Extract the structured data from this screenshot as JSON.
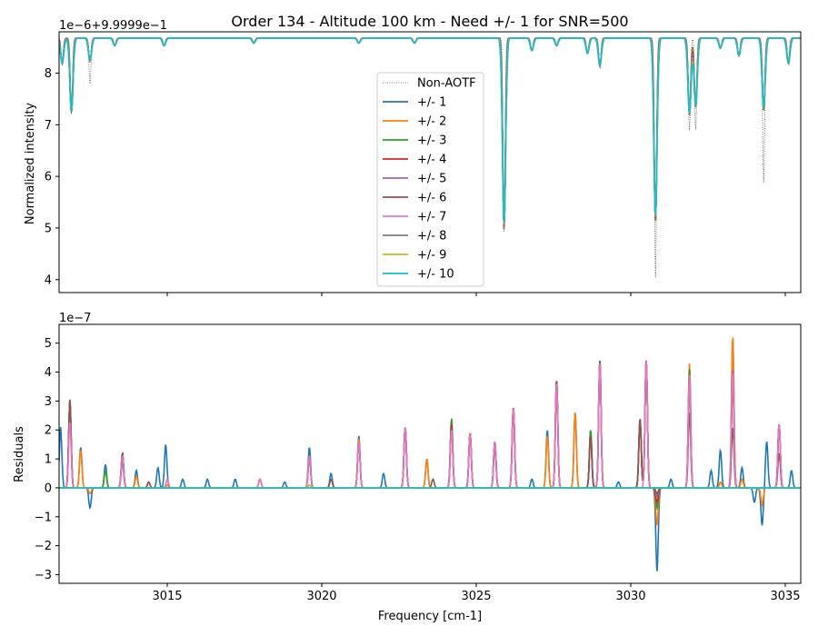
{
  "chart_data": [
    {
      "type": "line",
      "panel": "top",
      "title": "Order 134 - Altitude 100 km - Need +/- 1 for SNR=500",
      "offset_label": "1e−6+9.9999e−1",
      "ylabel": "Normalized intensity",
      "xlim": [
        3011.5,
        3035.5
      ],
      "ylim": [
        3.75,
        8.8
      ],
      "yticks": [
        "4",
        "5",
        "6",
        "7",
        "8"
      ],
      "legend_position": "center",
      "baseline": 8.68,
      "reference_series": {
        "name": "Non-AOTF",
        "color": "#555555",
        "style": "dotted"
      },
      "absorption_lines": [
        {
          "x": 3011.6,
          "depth": 0.5,
          "ref_depth": 0.5
        },
        {
          "x": 3011.9,
          "depth": 1.45,
          "ref_depth": 1.5
        },
        {
          "x": 3012.5,
          "depth": 0.45,
          "ref_depth": 0.9
        },
        {
          "x": 3013.3,
          "depth": 0.15,
          "ref_depth": 0.15
        },
        {
          "x": 3014.9,
          "depth": 0.15,
          "ref_depth": 0.15
        },
        {
          "x": 3017.8,
          "depth": 0.1,
          "ref_depth": 0.1
        },
        {
          "x": 3021.2,
          "depth": 0.1,
          "ref_depth": 0.1
        },
        {
          "x": 3023.0,
          "depth": 0.1,
          "ref_depth": 0.1
        },
        {
          "x": 3025.9,
          "depth": 3.7,
          "ref_depth": 3.75
        },
        {
          "x": 3026.8,
          "depth": 0.25,
          "ref_depth": 0.25
        },
        {
          "x": 3027.6,
          "depth": 0.15,
          "ref_depth": 0.15
        },
        {
          "x": 3028.6,
          "depth": 0.3,
          "ref_depth": 0.3
        },
        {
          "x": 3029.0,
          "depth": 0.55,
          "ref_depth": 0.55
        },
        {
          "x": 3030.8,
          "depth": 3.55,
          "ref_depth": 4.65
        },
        {
          "x": 3031.9,
          "depth": 1.5,
          "ref_depth": 1.8
        },
        {
          "x": 3032.1,
          "depth": 1.35,
          "ref_depth": 1.8
        },
        {
          "x": 3032.9,
          "depth": 0.2,
          "ref_depth": 0.2
        },
        {
          "x": 3033.5,
          "depth": 0.35,
          "ref_depth": 0.35
        },
        {
          "x": 3034.3,
          "depth": 1.4,
          "ref_depth": 2.8
        },
        {
          "x": 3035.1,
          "depth": 0.5,
          "ref_depth": 0.5
        }
      ],
      "series": [
        {
          "name": "+/- 1",
          "color": "#1f77b4"
        },
        {
          "name": "+/- 2",
          "color": "#ff7f0e"
        },
        {
          "name": "+/- 3",
          "color": "#2ca02c"
        },
        {
          "name": "+/- 4",
          "color": "#d62728"
        },
        {
          "name": "+/- 5",
          "color": "#9467bd"
        },
        {
          "name": "+/- 6",
          "color": "#8c564b"
        },
        {
          "name": "+/- 7",
          "color": "#e377c2"
        },
        {
          "name": "+/- 8",
          "color": "#7f7f7f"
        },
        {
          "name": "+/- 9",
          "color": "#bcbd22"
        },
        {
          "name": "+/- 10",
          "color": "#17becf"
        }
      ]
    },
    {
      "type": "line",
      "panel": "bottom",
      "offset_label": "1e−7",
      "xlabel": "Frequency [cm-1]",
      "ylabel": "Residuals",
      "xlim": [
        3011.5,
        3035.5
      ],
      "ylim": [
        -3.3,
        5.65
      ],
      "xticks": [
        "3015",
        "3020",
        "3025",
        "3030",
        "3035"
      ],
      "yticks": [
        "−3",
        "−2",
        "−1",
        "0",
        "1",
        "2",
        "3",
        "4",
        "5"
      ],
      "series": [
        {
          "name": "+/- 1",
          "color": "#1f77b4",
          "peaks": [
            [
              3011.55,
              2.1
            ],
            [
              3011.85,
              3.0
            ],
            [
              3012.2,
              1.4
            ],
            [
              3012.5,
              -0.7
            ],
            [
              3013.0,
              0.8
            ],
            [
              3013.55,
              0.9
            ],
            [
              3014.0,
              0.6
            ],
            [
              3014.7,
              0.7
            ],
            [
              3014.95,
              1.5
            ],
            [
              3015.5,
              0.3
            ],
            [
              3016.3,
              0.3
            ],
            [
              3017.2,
              0.3
            ],
            [
              3018.0,
              0.3
            ],
            [
              3018.8,
              0.2
            ],
            [
              3019.6,
              1.4
            ],
            [
              3020.3,
              0.5
            ],
            [
              3021.2,
              1.8
            ],
            [
              3022.0,
              0.5
            ],
            [
              3022.7,
              2.1
            ],
            [
              3023.4,
              1.0
            ],
            [
              3024.2,
              2.3
            ],
            [
              3024.8,
              1.9
            ],
            [
              3025.6,
              1.6
            ],
            [
              3026.2,
              2.8
            ],
            [
              3026.8,
              0.3
            ],
            [
              3027.3,
              2.0
            ],
            [
              3027.6,
              3.7
            ],
            [
              3028.2,
              2.6
            ],
            [
              3028.7,
              2.0
            ],
            [
              3029.0,
              4.4
            ],
            [
              3029.6,
              0.2
            ],
            [
              3030.3,
              2.4
            ],
            [
              3030.5,
              4.4
            ],
            [
              3030.85,
              -2.9
            ],
            [
              3031.3,
              0.3
            ],
            [
              3031.9,
              4.1
            ],
            [
              3032.6,
              0.6
            ],
            [
              3032.9,
              1.3
            ],
            [
              3033.3,
              5.2
            ],
            [
              3033.6,
              0.7
            ],
            [
              3034.0,
              -0.5
            ],
            [
              3034.25,
              -1.3
            ],
            [
              3034.4,
              1.6
            ],
            [
              3034.8,
              2.2
            ],
            [
              3035.2,
              0.6
            ]
          ]
        },
        {
          "name": "+/- 2",
          "color": "#ff7f0e",
          "peaks": [
            [
              3011.85,
              2.9
            ],
            [
              3012.2,
              1.3
            ],
            [
              3012.5,
              -0.2
            ],
            [
              3013.0,
              0.6
            ],
            [
              3013.55,
              1.2
            ],
            [
              3014.0,
              0.4
            ],
            [
              3015.0,
              0.1
            ],
            [
              3018.0,
              0.3
            ],
            [
              3019.6,
              1.1
            ],
            [
              3021.2,
              1.7
            ],
            [
              3022.7,
              2.1
            ],
            [
              3023.4,
              1.0
            ],
            [
              3024.2,
              2.2
            ],
            [
              3024.8,
              1.9
            ],
            [
              3025.6,
              1.5
            ],
            [
              3026.2,
              2.8
            ],
            [
              3027.3,
              1.8
            ],
            [
              3027.6,
              3.7
            ],
            [
              3028.2,
              2.6
            ],
            [
              3028.7,
              1.9
            ],
            [
              3029.0,
              4.4
            ],
            [
              3030.3,
              2.3
            ],
            [
              3030.5,
              4.4
            ],
            [
              3030.85,
              -1.3
            ],
            [
              3031.9,
              4.3
            ],
            [
              3032.9,
              0.2
            ],
            [
              3033.3,
              5.25
            ],
            [
              3033.6,
              0.3
            ],
            [
              3034.25,
              -0.6
            ],
            [
              3034.8,
              2.2
            ]
          ]
        },
        {
          "name": "+/- 3",
          "color": "#2ca02c",
          "peaks": [
            [
              3011.85,
              3.0
            ],
            [
              3013.0,
              0.6
            ],
            [
              3013.55,
              1.2
            ],
            [
              3019.6,
              1.1
            ],
            [
              3021.2,
              1.6
            ],
            [
              3022.7,
              2.1
            ],
            [
              3024.2,
              2.4
            ],
            [
              3024.8,
              1.9
            ],
            [
              3025.6,
              1.5
            ],
            [
              3026.2,
              2.8
            ],
            [
              3027.6,
              3.7
            ],
            [
              3028.7,
              2.0
            ],
            [
              3029.0,
              4.4
            ],
            [
              3030.3,
              2.3
            ],
            [
              3030.5,
              4.4
            ],
            [
              3030.85,
              -0.7
            ],
            [
              3031.9,
              4.1
            ],
            [
              3033.3,
              4.0
            ],
            [
              3034.8,
              2.2
            ]
          ]
        },
        {
          "name": "+/- 4",
          "color": "#d62728",
          "peaks": [
            [
              3011.85,
              3.0
            ],
            [
              3013.55,
              1.2
            ],
            [
              3014.4,
              0.2
            ],
            [
              3019.6,
              1.1
            ],
            [
              3021.2,
              1.6
            ],
            [
              3022.7,
              2.1
            ],
            [
              3024.2,
              2.2
            ],
            [
              3024.8,
              1.9
            ],
            [
              3025.6,
              1.5
            ],
            [
              3026.2,
              2.8
            ],
            [
              3027.6,
              3.7
            ],
            [
              3028.7,
              1.8
            ],
            [
              3029.0,
              4.4
            ],
            [
              3030.3,
              2.3
            ],
            [
              3030.5,
              4.4
            ],
            [
              3030.85,
              -0.5
            ],
            [
              3031.9,
              3.8
            ],
            [
              3033.3,
              3.6
            ],
            [
              3034.8,
              2.2
            ]
          ]
        },
        {
          "name": "+/- 5",
          "color": "#9467bd",
          "peaks": [
            [
              3011.85,
              3.0
            ],
            [
              3013.55,
              1.2
            ],
            [
              3019.6,
              1.1
            ],
            [
              3021.2,
              1.6
            ],
            [
              3022.7,
              2.1
            ],
            [
              3024.2,
              2.1
            ],
            [
              3024.8,
              1.9
            ],
            [
              3025.6,
              1.5
            ],
            [
              3026.2,
              2.8
            ],
            [
              3027.6,
              3.7
            ],
            [
              3028.7,
              1.7
            ],
            [
              3029.0,
              4.4
            ],
            [
              3030.3,
              2.3
            ],
            [
              3030.5,
              4.45
            ],
            [
              3030.85,
              -0.3
            ],
            [
              3031.9,
              3.8
            ],
            [
              3033.3,
              4.1
            ],
            [
              3034.8,
              2.2
            ]
          ]
        },
        {
          "name": "+/- 6",
          "color": "#8c564b",
          "peaks": [
            [
              3011.85,
              3.1
            ],
            [
              3013.55,
              1.2
            ],
            [
              3014.4,
              0.2
            ],
            [
              3019.6,
              1.1
            ],
            [
              3020.3,
              0.3
            ],
            [
              3021.2,
              1.6
            ],
            [
              3022.7,
              2.1
            ],
            [
              3023.6,
              0.3
            ],
            [
              3024.2,
              2.1
            ],
            [
              3024.8,
              1.9
            ],
            [
              3025.6,
              1.6
            ],
            [
              3026.2,
              2.8
            ],
            [
              3027.6,
              3.7
            ],
            [
              3028.7,
              1.8
            ],
            [
              3029.0,
              4.4
            ],
            [
              3030.3,
              2.4
            ],
            [
              3030.5,
              4.4
            ],
            [
              3030.85,
              -0.2
            ],
            [
              3031.9,
              2.6
            ],
            [
              3033.3,
              2.1
            ],
            [
              3034.8,
              1.2
            ]
          ]
        },
        {
          "name": "+/- 7",
          "color": "#e377c2",
          "peaks": [
            [
              3011.85,
              2.3
            ],
            [
              3013.55,
              1.1
            ],
            [
              3015.0,
              0.3
            ],
            [
              3018.0,
              0.3
            ],
            [
              3019.6,
              1.1
            ],
            [
              3021.2,
              1.6
            ],
            [
              3022.7,
              2.1
            ],
            [
              3024.2,
              2.0
            ],
            [
              3024.8,
              1.9
            ],
            [
              3025.6,
              1.6
            ],
            [
              3026.2,
              2.8
            ],
            [
              3027.6,
              3.6
            ],
            [
              3029.0,
              4.3
            ],
            [
              3030.5,
              4.4
            ],
            [
              3031.9,
              3.9
            ],
            [
              3033.3,
              4.0
            ],
            [
              3034.8,
              2.2
            ]
          ]
        },
        {
          "name": "+/- 8",
          "color": "#7f7f7f",
          "peaks": []
        },
        {
          "name": "+/- 9",
          "color": "#bcbd22",
          "peaks": [
            [
              3019.6,
              0.1
            ]
          ]
        },
        {
          "name": "+/- 10",
          "color": "#17becf",
          "peaks": []
        }
      ]
    }
  ]
}
